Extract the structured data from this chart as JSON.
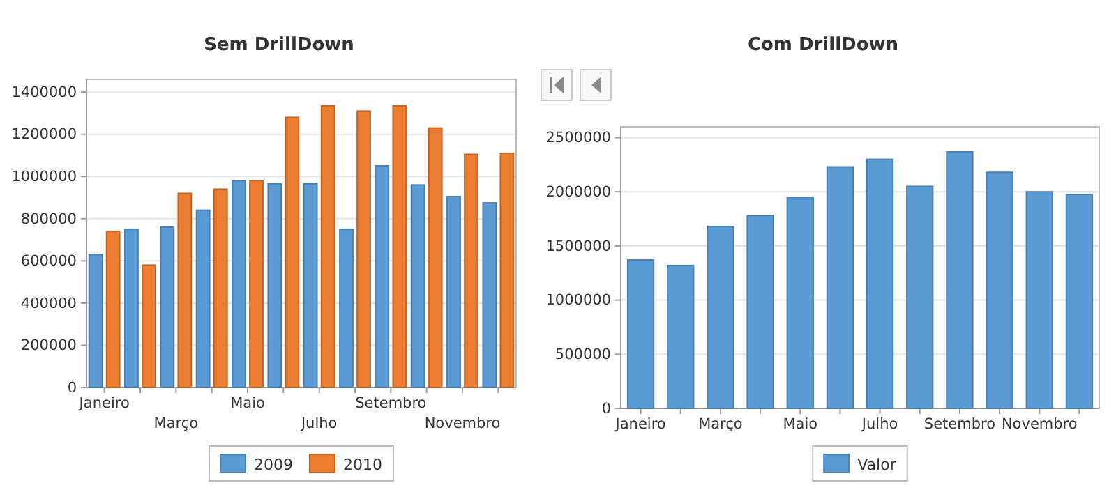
{
  "chart_data": [
    {
      "type": "bar",
      "title": "Sem DrillDown",
      "categories": [
        "Janeiro",
        null,
        "Março",
        null,
        "Maio",
        null,
        "Julho",
        null,
        "Setembro",
        null,
        "Novembro",
        null
      ],
      "series": [
        {
          "name": "2009",
          "color": "#5b9bd5",
          "values": [
            630000,
            750000,
            760000,
            840000,
            980000,
            965000,
            965000,
            750000,
            1050000,
            960000,
            905000,
            875000
          ]
        },
        {
          "name": "2010",
          "color": "#ed7d31",
          "values": [
            740000,
            580000,
            920000,
            940000,
            980000,
            1280000,
            1335000,
            1310000,
            1335000,
            1230000,
            1105000,
            1110000
          ]
        }
      ],
      "ylim": [
        0,
        1460000
      ],
      "yticks": [
        0,
        200000,
        400000,
        600000,
        800000,
        1000000,
        1200000,
        1400000
      ],
      "grid": "y",
      "legend": "bottom"
    },
    {
      "type": "bar",
      "title": "Com DrillDown",
      "categories": [
        "Janeiro",
        null,
        "Março",
        null,
        "Maio",
        null,
        "Julho",
        null,
        "Setembro",
        null,
        "Novembro",
        null
      ],
      "series": [
        {
          "name": "Valor",
          "color": "#5b9bd5",
          "values": [
            1370000,
            1320000,
            1680000,
            1780000,
            1950000,
            2230000,
            2300000,
            2050000,
            2370000,
            2180000,
            2000000,
            1975000
          ]
        }
      ],
      "ylim": [
        0,
        2600000
      ],
      "yticks": [
        0,
        500000,
        1000000,
        1500000,
        2000000,
        2500000
      ],
      "grid": "y",
      "legend": "bottom"
    }
  ]
}
